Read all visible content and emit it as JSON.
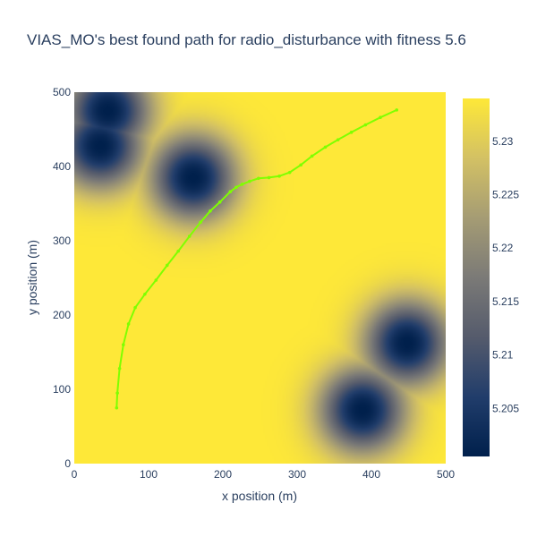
{
  "chart_data": {
    "type": "heatmap",
    "title": "VIAS_MO's best found path for radio_disturbance with fitness 5.6",
    "xlabel": "x position (m)",
    "ylabel": "y position (m)",
    "xlim": [
      0,
      500
    ],
    "ylim": [
      0,
      500
    ],
    "x_ticks": [
      "0",
      "100",
      "200",
      "300",
      "400",
      "500"
    ],
    "y_ticks": [
      "0",
      "100",
      "200",
      "300",
      "400",
      "500"
    ],
    "x_tick_values": [
      0,
      100,
      200,
      300,
      400,
      500
    ],
    "y_tick_values": [
      0,
      100,
      200,
      300,
      400,
      500
    ],
    "colorscale": [
      "#00204c",
      "#213d6b",
      "#555b6c",
      "#7b7a77",
      "#a59c74",
      "#d3c164",
      "#fee838"
    ],
    "colorbar": {
      "range": [
        5.2005,
        5.234
      ],
      "tick_values": [
        5.205,
        5.21,
        5.215,
        5.22,
        5.225,
        5.23
      ],
      "tick_labels": [
        "5.205",
        "5.21",
        "5.215",
        "5.22",
        "5.225",
        "5.23"
      ]
    },
    "disturbance_sources": [
      {
        "x": 45,
        "y": 475
      },
      {
        "x": 35,
        "y": 428
      },
      {
        "x": 160,
        "y": 385
      },
      {
        "x": 448,
        "y": 162
      },
      {
        "x": 388,
        "y": 72
      }
    ],
    "path_color": "#7fff00",
    "path": {
      "x": [
        57,
        58,
        61,
        66,
        73,
        82,
        95,
        110,
        125,
        140,
        155,
        170,
        183,
        196,
        210,
        218,
        226,
        236,
        248,
        262,
        276,
        290,
        305,
        320,
        338,
        355,
        373,
        392,
        412,
        434
      ],
      "y": [
        75,
        95,
        128,
        160,
        188,
        210,
        228,
        247,
        267,
        286,
        306,
        325,
        340,
        352,
        366,
        372,
        376,
        380,
        384,
        385,
        387,
        392,
        402,
        414,
        426,
        436,
        446,
        456,
        466,
        476
      ]
    }
  }
}
